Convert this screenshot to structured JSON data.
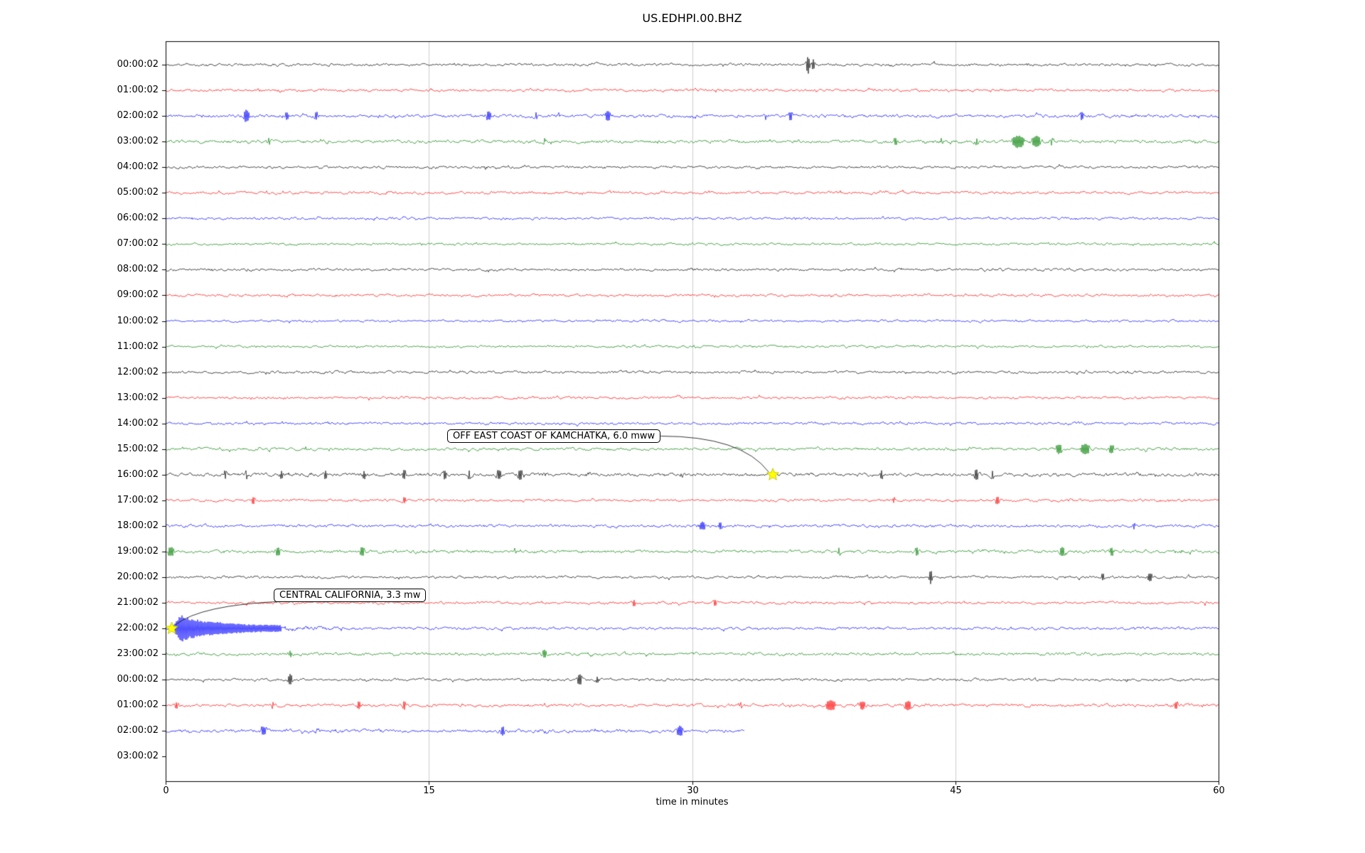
{
  "figure": {
    "title": "US.EDHPI.00.BHZ"
  },
  "chart_data": {
    "type": "line",
    "subtype": "seismogram-dayplot",
    "title": "US.EDHPI.00.BHZ",
    "xlabel": "time in minutes",
    "xlim": [
      0,
      60
    ],
    "xticks": [
      0,
      15,
      30,
      45,
      60
    ],
    "grid": "vertical-only",
    "legend": "none",
    "color_cycle": [
      "#000000",
      "#ff0000",
      "#0000ff",
      "#008000"
    ],
    "event_marker_color": "#ffff00",
    "rows": [
      {
        "label": "00:00:02",
        "color": "#000000",
        "duration_min": 60,
        "noise": 2.0,
        "bursts": [
          {
            "t": 36.6,
            "w": 0.06,
            "a": 12
          },
          {
            "t": 36.9,
            "w": 0.05,
            "a": 6
          },
          {
            "t": 24.6,
            "w": 0.1,
            "a": 2.5
          },
          {
            "t": 41.3,
            "w": 0.08,
            "a": 2
          }
        ]
      },
      {
        "label": "01:00:02",
        "color": "#ff0000",
        "duration_min": 60,
        "noise": 2.0,
        "bursts": [
          {
            "t": 6.5,
            "w": 0.1,
            "a": 1.5
          },
          {
            "t": 30.2,
            "w": 0.1,
            "a": 1.5
          },
          {
            "t": 47.0,
            "w": 0.1,
            "a": 1.2
          }
        ]
      },
      {
        "label": "02:00:02",
        "color": "#0000ff",
        "duration_min": 60,
        "noise": 2.4,
        "bursts": [
          {
            "t": 4.6,
            "w": 0.12,
            "a": 7
          },
          {
            "t": 6.9,
            "w": 0.1,
            "a": 4
          },
          {
            "t": 8.6,
            "w": 0.1,
            "a": 3.5
          },
          {
            "t": 12.1,
            "w": 0.1,
            "a": 2.5
          },
          {
            "t": 18.4,
            "w": 0.15,
            "a": 4
          },
          {
            "t": 21.1,
            "w": 0.1,
            "a": 3
          },
          {
            "t": 22.4,
            "w": 0.1,
            "a": 3
          },
          {
            "t": 25.2,
            "w": 0.12,
            "a": 5
          },
          {
            "t": 30.0,
            "w": 0.1,
            "a": 2.5
          },
          {
            "t": 34.2,
            "w": 0.1,
            "a": 3
          },
          {
            "t": 35.6,
            "w": 0.12,
            "a": 4
          },
          {
            "t": 44.0,
            "w": 0.1,
            "a": 2
          },
          {
            "t": 52.2,
            "w": 0.12,
            "a": 3.5
          }
        ]
      },
      {
        "label": "03:00:02",
        "color": "#008000",
        "duration_min": 60,
        "noise": 2.4,
        "bursts": [
          {
            "t": 5.9,
            "w": 0.1,
            "a": 3
          },
          {
            "t": 9.1,
            "w": 0.08,
            "a": 2.5
          },
          {
            "t": 21.6,
            "w": 0.1,
            "a": 3
          },
          {
            "t": 41.6,
            "w": 0.12,
            "a": 3.5
          },
          {
            "t": 44.2,
            "w": 0.1,
            "a": 3
          },
          {
            "t": 46.2,
            "w": 0.1,
            "a": 3
          },
          {
            "t": 48.6,
            "w": 0.25,
            "a": 7
          },
          {
            "t": 49.6,
            "w": 0.2,
            "a": 6
          },
          {
            "t": 50.5,
            "w": 0.15,
            "a": 3
          }
        ]
      },
      {
        "label": "04:00:02",
        "color": "#000000",
        "duration_min": 60,
        "noise": 2.0,
        "bursts": [
          {
            "t": 18.2,
            "w": 0.1,
            "a": 2
          }
        ]
      },
      {
        "label": "05:00:02",
        "color": "#ff0000",
        "duration_min": 60,
        "noise": 2.0,
        "bursts": [
          {
            "t": 12.6,
            "w": 0.1,
            "a": 2
          },
          {
            "t": 25.3,
            "w": 0.1,
            "a": 2
          }
        ]
      },
      {
        "label": "06:00:02",
        "color": "#0000ff",
        "duration_min": 60,
        "noise": 2.0,
        "bursts": []
      },
      {
        "label": "07:00:02",
        "color": "#008000",
        "duration_min": 60,
        "noise": 1.8,
        "bursts": []
      },
      {
        "label": "08:00:02",
        "color": "#000000",
        "duration_min": 60,
        "noise": 2.0,
        "bursts": [
          {
            "t": 2.5,
            "w": 0.3,
            "a": 1
          },
          {
            "t": 30.0,
            "w": 0.3,
            "a": 0.8
          }
        ]
      },
      {
        "label": "09:00:02",
        "color": "#ff0000",
        "duration_min": 60,
        "noise": 2.0,
        "bursts": [
          {
            "t": 7.0,
            "w": 0.2,
            "a": 1
          }
        ]
      },
      {
        "label": "10:00:02",
        "color": "#0000ff",
        "duration_min": 60,
        "noise": 1.8,
        "bursts": []
      },
      {
        "label": "11:00:02",
        "color": "#008000",
        "duration_min": 60,
        "noise": 1.8,
        "bursts": []
      },
      {
        "label": "12:00:02",
        "color": "#000000",
        "duration_min": 60,
        "noise": 2.0,
        "bursts": [
          {
            "t": 55.0,
            "w": 0.2,
            "a": 1
          }
        ]
      },
      {
        "label": "13:00:02",
        "color": "#ff0000",
        "duration_min": 60,
        "noise": 2.0,
        "bursts": []
      },
      {
        "label": "14:00:02",
        "color": "#0000ff",
        "duration_min": 60,
        "noise": 2.0,
        "bursts": []
      },
      {
        "label": "15:00:02",
        "color": "#008000",
        "duration_min": 60,
        "noise": 2.2,
        "bursts": [
          {
            "t": 8.1,
            "w": 0.1,
            "a": 2
          },
          {
            "t": 45.8,
            "w": 0.1,
            "a": 2
          },
          {
            "t": 50.9,
            "w": 0.15,
            "a": 5
          },
          {
            "t": 52.4,
            "w": 0.2,
            "a": 6
          },
          {
            "t": 53.9,
            "w": 0.15,
            "a": 4
          },
          {
            "t": 55.8,
            "w": 0.1,
            "a": 2.5
          }
        ]
      },
      {
        "label": "16:00:02",
        "color": "#000000",
        "duration_min": 60,
        "noise": 2.6,
        "bursts": [
          {
            "t": 3.4,
            "w": 0.08,
            "a": 4
          },
          {
            "t": 4.6,
            "w": 0.08,
            "a": 4
          },
          {
            "t": 6.6,
            "w": 0.08,
            "a": 4
          },
          {
            "t": 8.2,
            "w": 0.08,
            "a": 3
          },
          {
            "t": 9.1,
            "w": 0.08,
            "a": 4
          },
          {
            "t": 10.6,
            "w": 0.08,
            "a": 3
          },
          {
            "t": 11.3,
            "w": 0.1,
            "a": 4
          },
          {
            "t": 13.6,
            "w": 0.08,
            "a": 5
          },
          {
            "t": 15.9,
            "w": 0.1,
            "a": 4
          },
          {
            "t": 17.3,
            "w": 0.08,
            "a": 4
          },
          {
            "t": 19.0,
            "w": 0.12,
            "a": 5
          },
          {
            "t": 20.2,
            "w": 0.12,
            "a": 5
          },
          {
            "t": 21.6,
            "w": 0.1,
            "a": 3
          },
          {
            "t": 24.1,
            "w": 0.1,
            "a": 3
          },
          {
            "t": 29.4,
            "w": 0.08,
            "a": 3
          },
          {
            "t": 34.6,
            "w": 0.06,
            "a": 2
          },
          {
            "t": 40.8,
            "w": 0.08,
            "a": 4
          },
          {
            "t": 46.2,
            "w": 0.1,
            "a": 5
          },
          {
            "t": 47.1,
            "w": 0.08,
            "a": 4
          },
          {
            "t": 55.4,
            "w": 0.08,
            "a": 2.5
          }
        ]
      },
      {
        "label": "17:00:02",
        "color": "#ff0000",
        "duration_min": 60,
        "noise": 2.0,
        "bursts": [
          {
            "t": 5.0,
            "w": 0.08,
            "a": 3.5
          },
          {
            "t": 13.6,
            "w": 0.08,
            "a": 3
          },
          {
            "t": 41.5,
            "w": 0.1,
            "a": 2.5
          },
          {
            "t": 47.4,
            "w": 0.1,
            "a": 4
          },
          {
            "t": 51.5,
            "w": 0.08,
            "a": 2
          },
          {
            "t": 57.2,
            "w": 0.08,
            "a": 2
          }
        ]
      },
      {
        "label": "18:00:02",
        "color": "#0000ff",
        "duration_min": 60,
        "noise": 2.2,
        "bursts": [
          {
            "t": 10.5,
            "w": 0.1,
            "a": 1.5
          },
          {
            "t": 30.6,
            "w": 0.15,
            "a": 4
          },
          {
            "t": 31.6,
            "w": 0.12,
            "a": 3
          },
          {
            "t": 55.2,
            "w": 0.1,
            "a": 3
          }
        ]
      },
      {
        "label": "19:00:02",
        "color": "#008000",
        "duration_min": 60,
        "noise": 2.4,
        "bursts": [
          {
            "t": 0.3,
            "w": 0.15,
            "a": 5
          },
          {
            "t": 6.4,
            "w": 0.12,
            "a": 4
          },
          {
            "t": 11.2,
            "w": 0.1,
            "a": 5
          },
          {
            "t": 14.2,
            "w": 0.1,
            "a": 2.5
          },
          {
            "t": 19.9,
            "w": 0.1,
            "a": 3
          },
          {
            "t": 38.4,
            "w": 0.12,
            "a": 3
          },
          {
            "t": 42.8,
            "w": 0.12,
            "a": 3.5
          },
          {
            "t": 51.1,
            "w": 0.12,
            "a": 5
          },
          {
            "t": 53.9,
            "w": 0.12,
            "a": 4
          },
          {
            "t": 57.9,
            "w": 0.1,
            "a": 2.5
          }
        ]
      },
      {
        "label": "20:00:02",
        "color": "#000000",
        "duration_min": 60,
        "noise": 2.0,
        "bursts": [
          {
            "t": 43.6,
            "w": 0.06,
            "a": 8
          },
          {
            "t": 53.4,
            "w": 0.1,
            "a": 3
          },
          {
            "t": 56.1,
            "w": 0.12,
            "a": 4
          },
          {
            "t": 58.3,
            "w": 0.1,
            "a": 2.5
          }
        ]
      },
      {
        "label": "21:00:02",
        "color": "#ff0000",
        "duration_min": 60,
        "noise": 2.0,
        "bursts": [
          {
            "t": 26.7,
            "w": 0.1,
            "a": 3
          },
          {
            "t": 31.3,
            "w": 0.1,
            "a": 3
          },
          {
            "t": 59.3,
            "w": 0.1,
            "a": 2
          }
        ]
      },
      {
        "label": "22:00:02",
        "color": "#0000ff",
        "duration_min": 60,
        "noise": 2.2,
        "bursts": [
          {
            "t": 0.9,
            "w": 0.25,
            "a": 14
          },
          {
            "t": 1.5,
            "w": 0.4,
            "a": 9
          },
          {
            "t": 2.4,
            "w": 0.6,
            "a": 6
          },
          {
            "t": 3.6,
            "w": 0.8,
            "a": 4
          },
          {
            "t": 5.5,
            "w": 1.2,
            "a": 2.5
          },
          {
            "t": 8.0,
            "w": 1.5,
            "a": 1.5
          },
          {
            "t": 55.3,
            "w": 0.1,
            "a": 2
          }
        ]
      },
      {
        "label": "23:00:02",
        "color": "#008000",
        "duration_min": 60,
        "noise": 2.2,
        "bursts": [
          {
            "t": 7.1,
            "w": 0.1,
            "a": 3
          },
          {
            "t": 21.6,
            "w": 0.12,
            "a": 4
          },
          {
            "t": 24.2,
            "w": 0.1,
            "a": 2.5
          },
          {
            "t": 30.1,
            "w": 0.1,
            "a": 2
          },
          {
            "t": 44.9,
            "w": 0.1,
            "a": 2
          }
        ]
      },
      {
        "label": "00:00:02",
        "color": "#000000",
        "duration_min": 60,
        "noise": 2.0,
        "bursts": [
          {
            "t": 7.1,
            "w": 0.08,
            "a": 6
          },
          {
            "t": 23.6,
            "w": 0.1,
            "a": 6
          },
          {
            "t": 24.6,
            "w": 0.08,
            "a": 3
          },
          {
            "t": 54.8,
            "w": 0.1,
            "a": 2
          }
        ]
      },
      {
        "label": "01:00:02",
        "color": "#ff0000",
        "duration_min": 60,
        "noise": 2.2,
        "bursts": [
          {
            "t": 0.6,
            "w": 0.1,
            "a": 3
          },
          {
            "t": 6.1,
            "w": 0.1,
            "a": 3
          },
          {
            "t": 11.0,
            "w": 0.1,
            "a": 3.5
          },
          {
            "t": 13.6,
            "w": 0.1,
            "a": 4
          },
          {
            "t": 32.8,
            "w": 0.1,
            "a": 3
          },
          {
            "t": 37.9,
            "w": 0.2,
            "a": 6
          },
          {
            "t": 39.7,
            "w": 0.15,
            "a": 4
          },
          {
            "t": 42.3,
            "w": 0.15,
            "a": 5
          },
          {
            "t": 57.6,
            "w": 0.12,
            "a": 3.5
          },
          {
            "t": 59.0,
            "w": 0.1,
            "a": 2.5
          }
        ]
      },
      {
        "label": "02:00:02",
        "color": "#0000ff",
        "duration_min": 33,
        "noise": 2.5,
        "bursts": [
          {
            "t": 5.6,
            "w": 0.12,
            "a": 4
          },
          {
            "t": 8.6,
            "w": 0.1,
            "a": 3
          },
          {
            "t": 12.1,
            "w": 0.1,
            "a": 2.5
          },
          {
            "t": 19.2,
            "w": 0.15,
            "a": 4
          },
          {
            "t": 21.6,
            "w": 0.1,
            "a": 3
          },
          {
            "t": 24.4,
            "w": 0.1,
            "a": 3
          },
          {
            "t": 29.3,
            "w": 0.15,
            "a": 5
          }
        ]
      },
      {
        "label": "03:00:02",
        "color": "#008000",
        "duration_min": 0,
        "noise": 0,
        "bursts": []
      }
    ],
    "events": [
      {
        "label": "OFF EAST COAST OF KAMCHATKA, 6.0 mww",
        "row_label": "16:00:02",
        "row_index": 16,
        "t_minutes": 34.6
      },
      {
        "label": "CENTRAL CALIFORNIA, 3.3 mw",
        "row_label": "22:00:02",
        "row_index": 22,
        "t_minutes": 0.35
      }
    ]
  }
}
